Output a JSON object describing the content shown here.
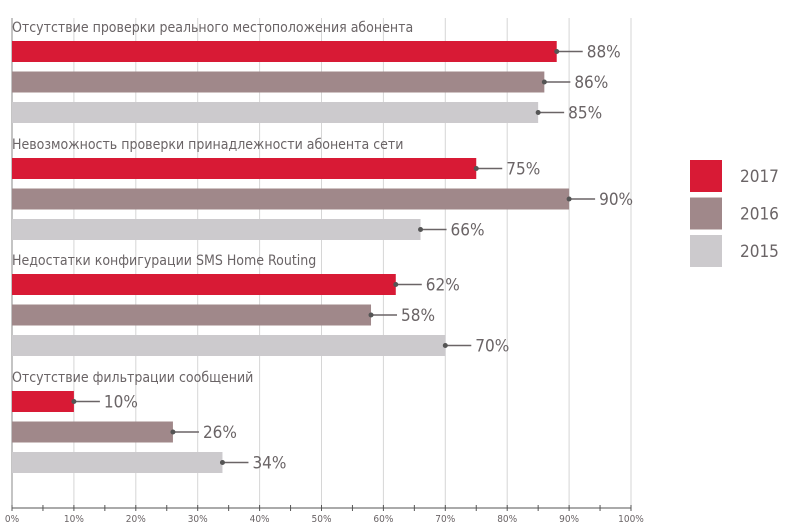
{
  "chart_data": {
    "type": "bar",
    "orientation": "horizontal",
    "categories": [
      "Отсутствие проверки реального местоположения абонента",
      "Невозможность проверки принадлежности абонента сети",
      "Недостатки конфигурации SMS Home Routing",
      "Отсутствие фильтрации сообщений"
    ],
    "series": [
      {
        "name": "2017",
        "color": "#d81a35",
        "values": [
          88,
          75,
          62,
          10
        ]
      },
      {
        "name": "2016",
        "color": "#a0888a",
        "values": [
          86,
          90,
          58,
          26
        ]
      },
      {
        "name": "2015",
        "color": "#cccacd",
        "values": [
          85,
          66,
          70,
          34
        ]
      }
    ],
    "value_suffix": "%",
    "xlim": [
      0,
      100
    ],
    "xticks": [
      "0%",
      "10%",
      "20%",
      "30%",
      "40%",
      "50%",
      "60%",
      "70%",
      "80%",
      "90%",
      "100%"
    ],
    "grid": true,
    "legend": "right",
    "title": "",
    "xlabel": "",
    "ylabel": ""
  }
}
